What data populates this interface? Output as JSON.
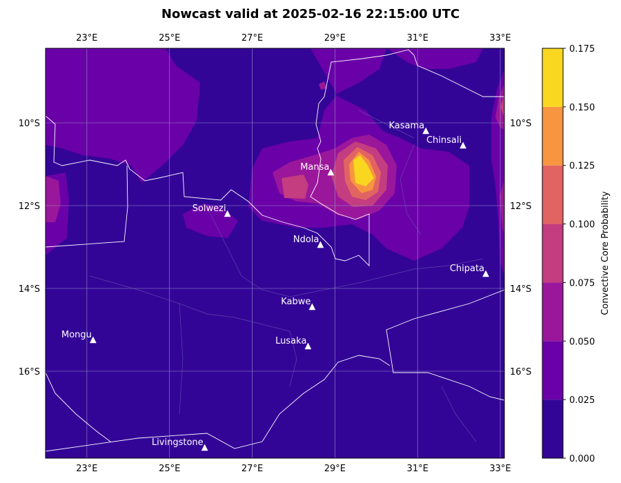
{
  "title": "Nowcast valid at 2025-02-16 22:15:00 UTC",
  "colorbar": {
    "label": "Convective Core Probability",
    "levels": [
      "0.000",
      "0.025",
      "0.050",
      "0.075",
      "0.100",
      "0.125",
      "0.150",
      "0.175"
    ],
    "colors": [
      "#330597",
      "#6a00a8",
      "#9a179b",
      "#c33d80",
      "#e16462",
      "#f89540",
      "#f9d721"
    ]
  },
  "map": {
    "extent": {
      "lon_min": 22,
      "lon_max": 33.1,
      "lat_min": -18.1,
      "lat_max": -8.2
    },
    "lon_ticks": [
      {
        "value": 23,
        "label": "23°E"
      },
      {
        "value": 25,
        "label": "25°E"
      },
      {
        "value": 27,
        "label": "27°E"
      },
      {
        "value": 29,
        "label": "29°E"
      },
      {
        "value": 31,
        "label": "31°E"
      },
      {
        "value": 33,
        "label": "33°E"
      }
    ],
    "lat_ticks": [
      {
        "value": -10,
        "label": "10°S"
      },
      {
        "value": -12,
        "label": "12°S"
      },
      {
        "value": -14,
        "label": "14°S"
      },
      {
        "value": -16,
        "label": "16°S"
      }
    ],
    "cities": [
      {
        "name": "Kasama",
        "lon": 31.2,
        "lat": -10.2
      },
      {
        "name": "Chinsali",
        "lon": 32.1,
        "lat": -10.55
      },
      {
        "name": "Mansa",
        "lon": 28.9,
        "lat": -11.2
      },
      {
        "name": "Solwezi",
        "lon": 26.4,
        "lat": -12.2
      },
      {
        "name": "Ndola",
        "lon": 28.65,
        "lat": -12.95
      },
      {
        "name": "Chipata",
        "lon": 32.65,
        "lat": -13.65
      },
      {
        "name": "Kabwe",
        "lon": 28.45,
        "lat": -14.45
      },
      {
        "name": "Mongu",
        "lon": 23.15,
        "lat": -15.25
      },
      {
        "name": "Lusaka",
        "lon": 28.35,
        "lat": -15.4
      },
      {
        "name": "Livingstone",
        "lon": 25.85,
        "lat": -17.85
      }
    ]
  }
}
